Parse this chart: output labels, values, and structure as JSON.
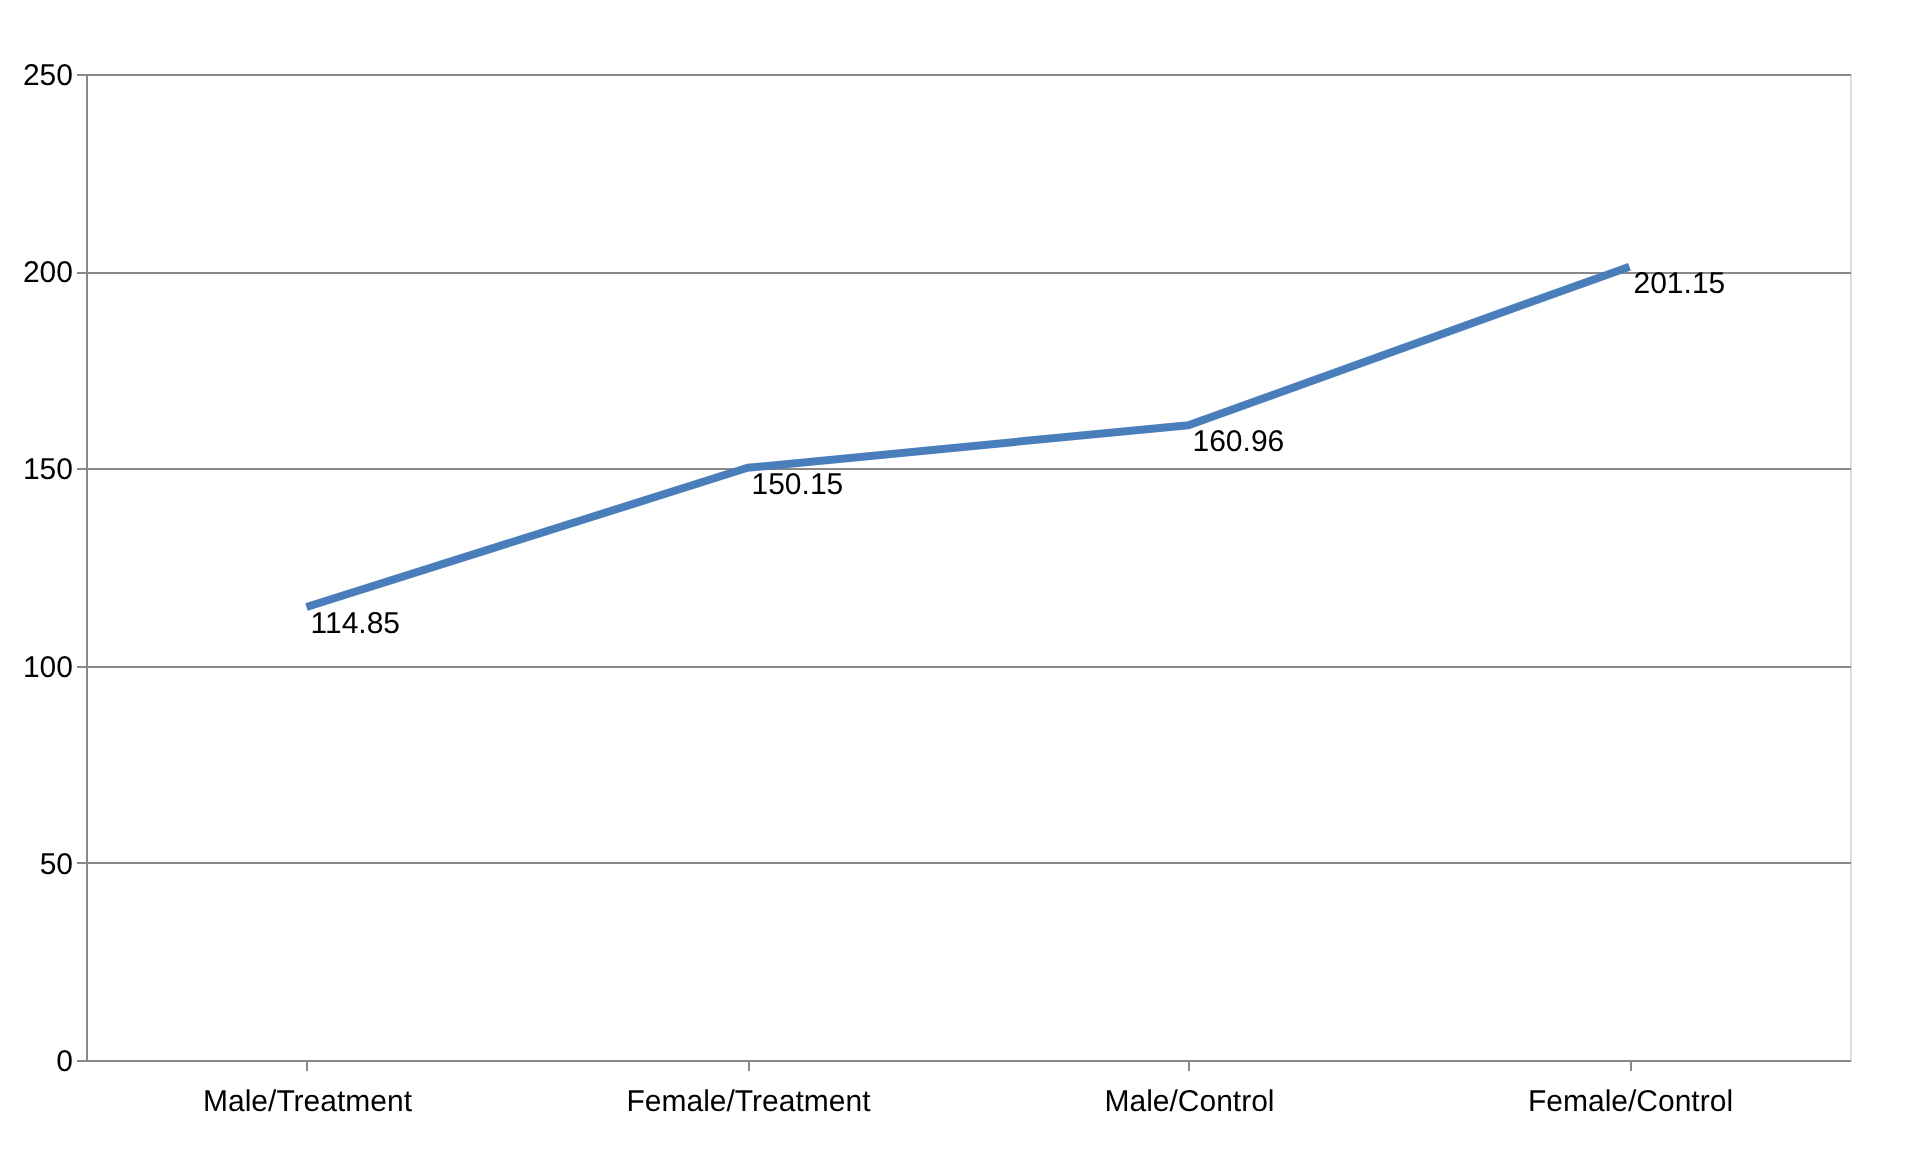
{
  "chart_data": {
    "type": "line",
    "categories": [
      "Male/Treatment",
      "Female/Treatment",
      "Male/Control",
      "Female/Control"
    ],
    "series": [
      {
        "color": "#4a7ebb",
        "values": [
          114.85,
          150.15,
          160.96,
          201.15
        ]
      }
    ],
    "ylim": [
      0,
      250
    ],
    "yticks": [
      0,
      50,
      100,
      150,
      200,
      250
    ],
    "grid": "y",
    "data_labels": true,
    "marker": "none",
    "line_style": "solid"
  }
}
